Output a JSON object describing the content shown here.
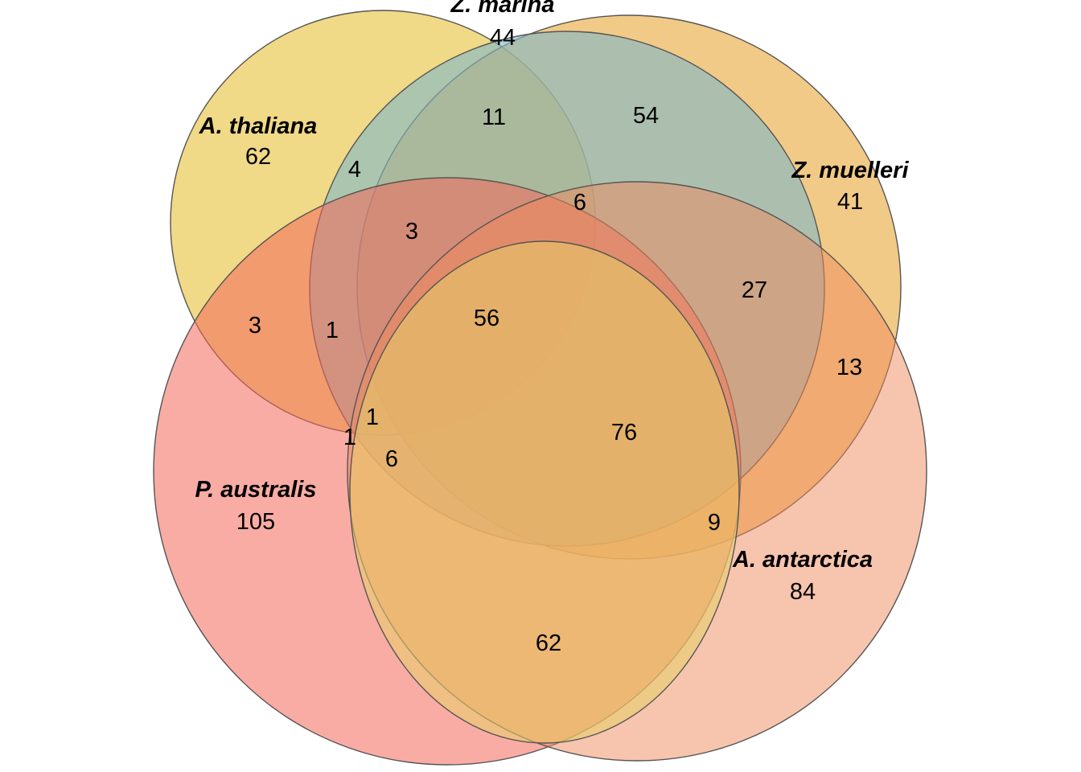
{
  "diagram": {
    "type": "venn",
    "sets": [
      {
        "id": "at",
        "name": "A. thaliana",
        "count": "62",
        "color": "#E8C547"
      },
      {
        "id": "zma",
        "name": "Z. marina",
        "count": "44",
        "color": "#7FB8C8"
      },
      {
        "id": "zmu",
        "name": "Z. muelleri",
        "count": "41",
        "color": "#E8A93E"
      },
      {
        "id": "aa",
        "name": "A. antarctica",
        "count": "84",
        "color": "#F08A5D"
      },
      {
        "id": "pa",
        "name": "P. australis",
        "count": "105",
        "color": "#F4685A"
      }
    ],
    "intersections": [
      {
        "sets": [
          "at",
          "zma"
        ],
        "count": "4"
      },
      {
        "sets": [
          "at",
          "zma",
          "zmu"
        ],
        "count": "11"
      },
      {
        "sets": [
          "zma",
          "zmu"
        ],
        "count": "54"
      },
      {
        "sets": [
          "zma",
          "zmu",
          "aa"
        ],
        "count": "6"
      },
      {
        "sets": [
          "at",
          "zma",
          "zmu",
          "pa"
        ],
        "count": "3"
      },
      {
        "sets": [
          "at",
          "pa"
        ],
        "count": "3"
      },
      {
        "sets": [
          "at",
          "zma",
          "pa"
        ],
        "count": "1"
      },
      {
        "sets": [
          "at",
          "zma",
          "zmu",
          "aa",
          "pa"
        ],
        "count": "56"
      },
      {
        "sets": [
          "zmu",
          "aa",
          "pa"
        ],
        "count": "27"
      },
      {
        "sets": [
          "zma",
          "aa"
        ],
        "count": "13"
      },
      {
        "sets": [
          "at",
          "zma",
          "aa",
          "pa"
        ],
        "count": "1"
      },
      {
        "sets": [
          "at",
          "aa",
          "pa"
        ],
        "count": "1"
      },
      {
        "sets": [
          "zma",
          "aa",
          "pa"
        ],
        "count": "76"
      },
      {
        "sets": [
          "aa",
          "pa"
        ],
        "count": "6"
      },
      {
        "sets": [
          "zma",
          "aa",
          "pa",
          "zmu"
        ],
        "count": "9"
      },
      {
        "sets": [
          "aa",
          "zmu"
        ],
        "count": "62"
      }
    ]
  }
}
